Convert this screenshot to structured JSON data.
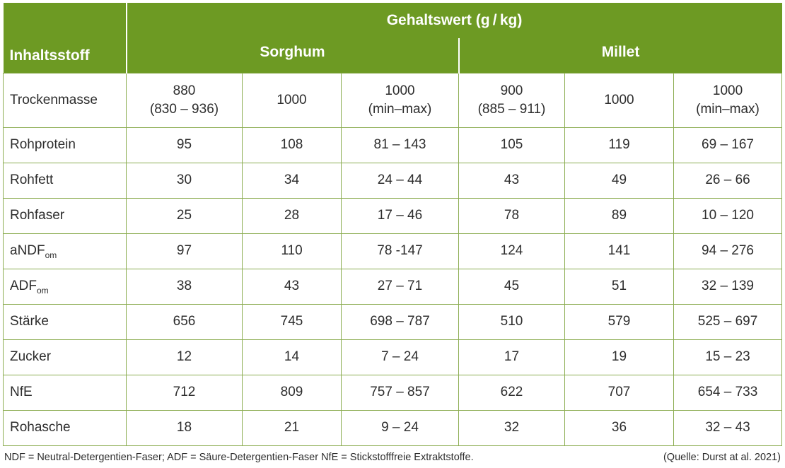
{
  "colors": {
    "header_green": "#6d9a23",
    "cell_border_green": "#8cad52",
    "text": "#2d2d2d"
  },
  "table": {
    "header": {
      "col_label": "Inhaltsstoff",
      "value_header": "Gehaltswert (g / kg)",
      "group1": "Sorghum",
      "group2": "Millet"
    },
    "rows": [
      {
        "label": "Trockenmasse",
        "values": [
          "880\n(830 – 936)",
          "1000",
          "1000\n(min–max)",
          "900\n(885 – 911)",
          "1000",
          "1000\n(min–max)"
        ]
      },
      {
        "label": "Rohprotein",
        "values": [
          "95",
          "108",
          "81 – 143",
          "105",
          "119",
          "69 – 167"
        ]
      },
      {
        "label": "Rohfett",
        "values": [
          "30",
          "34",
          "24 – 44",
          "43",
          "49",
          "26 – 66"
        ]
      },
      {
        "label": "Rohfaser",
        "values": [
          "25",
          "28",
          "17 – 46",
          "78",
          "89",
          "10 – 120"
        ]
      },
      {
        "label": "aNDF",
        "label_sub": "om",
        "values": [
          "97",
          "110",
          "78 -147",
          "124",
          "141",
          "94 – 276"
        ]
      },
      {
        "label": "ADF",
        "label_sub": "om",
        "values": [
          "38",
          "43",
          "27 – 71",
          "45",
          "51",
          "32 – 139"
        ]
      },
      {
        "label": "Stärke",
        "values": [
          "656",
          "745",
          "698 – 787",
          "510",
          "579",
          "525 – 697"
        ]
      },
      {
        "label": "Zucker",
        "values": [
          "12",
          "14",
          "7 – 24",
          "17",
          "19",
          "15 – 23"
        ]
      },
      {
        "label": "NfE",
        "values": [
          "712",
          "809",
          "757 – 857",
          "622",
          "707",
          "654 – 733"
        ]
      },
      {
        "label": "Rohasche",
        "values": [
          "18",
          "21",
          "9 – 24",
          "32",
          "36",
          "32 – 43"
        ]
      }
    ]
  },
  "footer": {
    "note": "NDF = Neutral-Detergentien-Faser; ADF = Säure-Detergentien-Faser NfE = Stickstofffreie Extraktstoffe.",
    "source": "(Quelle: Durst at al. 2021)"
  },
  "chart_data": {
    "type": "table",
    "title": "Gehaltswert (g/kg)",
    "column_groups": [
      "Sorghum",
      "Sorghum",
      "Sorghum",
      "Millet",
      "Millet",
      "Millet"
    ],
    "columns": [
      "Inhaltsstoff",
      "Sorghum 880 (830–936)",
      "Sorghum 1000",
      "Sorghum 1000 (min–max)",
      "Millet 900 (885–911)",
      "Millet 1000",
      "Millet 1000 (min–max)"
    ],
    "rows": [
      [
        "Trockenmasse",
        "880 (830–936)",
        "1000",
        "1000 (min–max)",
        "900 (885–911)",
        "1000",
        "1000 (min–max)"
      ],
      [
        "Rohprotein",
        95,
        108,
        "81–143",
        105,
        119,
        "69–167"
      ],
      [
        "Rohfett",
        30,
        34,
        "24–44",
        43,
        49,
        "26–66"
      ],
      [
        "Rohfaser",
        25,
        28,
        "17–46",
        78,
        89,
        "10–120"
      ],
      [
        "aNDFom",
        97,
        110,
        "78–147",
        124,
        141,
        "94–276"
      ],
      [
        "ADFom",
        38,
        43,
        "27–71",
        45,
        51,
        "32–139"
      ],
      [
        "Stärke",
        656,
        745,
        "698–787",
        510,
        579,
        "525–697"
      ],
      [
        "Zucker",
        12,
        14,
        "7–24",
        17,
        19,
        "15–23"
      ],
      [
        "NfE",
        712,
        809,
        "757–857",
        622,
        707,
        "654–733"
      ],
      [
        "Rohasche",
        18,
        21,
        "9–24",
        32,
        36,
        "32–43"
      ]
    ],
    "source": "(Quelle: Durst at al. 2021)"
  }
}
